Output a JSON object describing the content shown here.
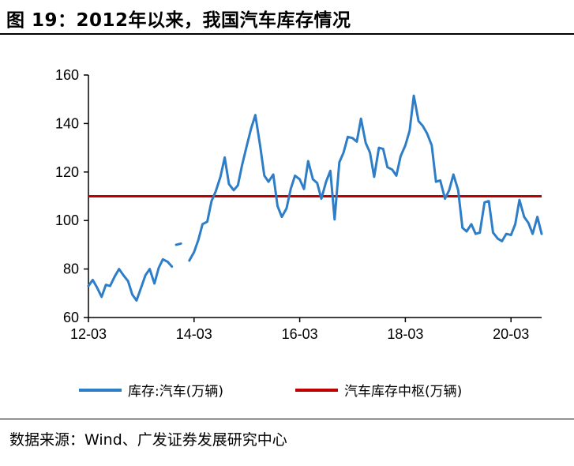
{
  "figure": {
    "title": "图 19：2012年以来，我国汽车库存情况",
    "source": "数据来源：Wind、广发证券发展研究中心"
  },
  "colors": {
    "inventory": "#2e7dc7",
    "center": "#c00000",
    "axis": "#000000"
  },
  "chart_data": {
    "type": "line",
    "title": "2012年以来，我国汽车库存情况",
    "xlabel": "",
    "ylabel": "",
    "ylim": [
      60,
      160
    ],
    "yticks": [
      60,
      80,
      100,
      120,
      140,
      160
    ],
    "x_ticks": [
      {
        "label": "12-03",
        "t": 2012.17
      },
      {
        "label": "14-03",
        "t": 2014.17
      },
      {
        "label": "16-03",
        "t": 2016.17
      },
      {
        "label": "18-03",
        "t": 2018.17
      },
      {
        "label": "20-03",
        "t": 2020.17
      }
    ],
    "x_range": [
      2012.17,
      2020.75
    ],
    "grid": false,
    "legend_position": "bottom",
    "series": [
      {
        "name": "库存:汽车(万辆)",
        "kind": "line",
        "segments": [
          {
            "t": [
              2012.17,
              2012.25,
              2012.33,
              2012.42,
              2012.5,
              2012.58,
              2012.67,
              2012.75,
              2012.83,
              2012.92,
              2013.0,
              2013.08,
              2013.17,
              2013.25,
              2013.33,
              2013.42,
              2013.5,
              2013.58,
              2013.67,
              2013.75
            ],
            "values": [
              73,
              75.5,
              72.5,
              68.5,
              73.5,
              73,
              77,
              80,
              77.5,
              75,
              69.5,
              67,
              72.5,
              77.5,
              80,
              74,
              80.5,
              84,
              83,
              81
            ]
          },
          {
            "t": [
              2013.83,
              2013.92
            ],
            "values": [
              90,
              90.5
            ]
          },
          {
            "t": [
              2014.08,
              2014.17,
              2014.25,
              2014.33,
              2014.42,
              2014.5,
              2014.58,
              2014.67,
              2014.75,
              2014.83,
              2014.92,
              2015.0,
              2015.08,
              2015.17,
              2015.25,
              2015.33,
              2015.42,
              2015.5,
              2015.58,
              2015.67,
              2015.75,
              2015.83,
              2015.92,
              2016.0,
              2016.08,
              2016.17,
              2016.25,
              2016.33,
              2016.42,
              2016.5,
              2016.58,
              2016.67,
              2016.75,
              2016.83,
              2016.92,
              2017.0,
              2017.08,
              2017.17,
              2017.25,
              2017.33,
              2017.42,
              2017.5,
              2017.58,
              2017.67,
              2017.75,
              2017.83,
              2017.92,
              2018.0,
              2018.08,
              2018.17,
              2018.25,
              2018.33,
              2018.42,
              2018.5,
              2018.58,
              2018.67,
              2018.75,
              2018.83,
              2018.92,
              2019.0,
              2019.08,
              2019.17,
              2019.25,
              2019.33,
              2019.42,
              2019.5,
              2019.58,
              2019.67,
              2019.75,
              2019.83,
              2019.92,
              2020.0,
              2020.08,
              2020.17,
              2020.25,
              2020.33,
              2020.42,
              2020.5,
              2020.58,
              2020.67,
              2020.75
            ],
            "values": [
              83.5,
              87,
              92,
              98.5,
              99.5,
              108,
              112,
              118,
              126,
              115,
              112.5,
              114.5,
              123,
              131,
              138,
              143.5,
              131,
              118.5,
              116,
              119,
              106,
              101.5,
              105,
              113,
              118.5,
              117,
              113,
              124.5,
              117,
              115.5,
              109,
              116,
              120.5,
              100.5,
              124,
              128,
              134.5,
              134,
              132.5,
              142,
              132,
              128,
              118,
              130,
              129.5,
              122,
              121,
              118.5,
              126.5,
              131,
              137,
              151.5,
              141,
              139,
              136,
              131,
              116,
              116.5,
              109,
              112.5,
              119,
              112.5,
              97,
              95.5,
              98.5,
              94.5,
              95,
              107.5,
              108,
              95,
              92.5,
              91.5,
              94.5,
              94,
              98.5,
              108.5,
              101.5,
              99,
              94.5,
              101.5,
              94.5
            ]
          }
        ]
      },
      {
        "name": "汽车库存中枢(万辆)",
        "kind": "reference_line",
        "value": 110
      }
    ]
  }
}
